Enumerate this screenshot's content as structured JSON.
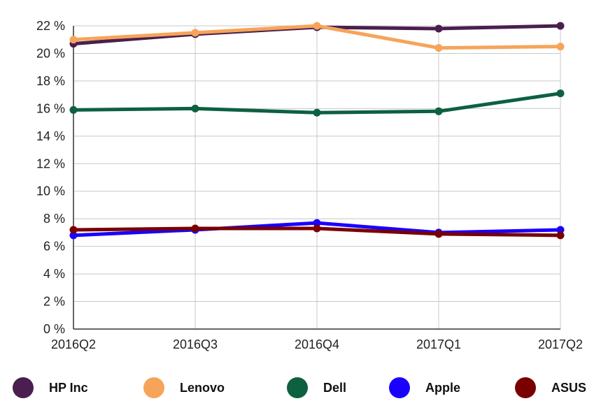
{
  "chart_data": {
    "type": "line",
    "title": "",
    "xlabel": "",
    "ylabel": "",
    "categories": [
      "2016Q2",
      "2016Q3",
      "2016Q4",
      "2017Q1",
      "2017Q2"
    ],
    "ylim": [
      0,
      22
    ],
    "yticks": [
      0,
      2,
      4,
      6,
      8,
      10,
      12,
      14,
      16,
      18,
      20,
      22
    ],
    "ytick_labels": [
      "0 %",
      "2 %",
      "4 %",
      "6 %",
      "8 %",
      "10 %",
      "12 %",
      "14 %",
      "16 %",
      "18 %",
      "20 %",
      "22 %"
    ],
    "grid": true,
    "legend_position": "bottom",
    "series": [
      {
        "name": "HP Inc",
        "color": "#4a1f4f",
        "values": [
          20.7,
          21.4,
          21.9,
          21.8,
          22.0
        ]
      },
      {
        "name": "Lenovo",
        "color": "#f6a45a",
        "values": [
          21.0,
          21.5,
          22.0,
          20.4,
          20.5
        ]
      },
      {
        "name": "Dell",
        "color": "#0d6040",
        "values": [
          15.9,
          16.0,
          15.7,
          15.8,
          17.1
        ]
      },
      {
        "name": "Apple",
        "color": "#1a00ff",
        "values": [
          6.8,
          7.2,
          7.7,
          7.0,
          7.2
        ]
      },
      {
        "name": "ASUS",
        "color": "#7a0000",
        "values": [
          7.2,
          7.3,
          7.3,
          6.9,
          6.8
        ]
      }
    ]
  }
}
